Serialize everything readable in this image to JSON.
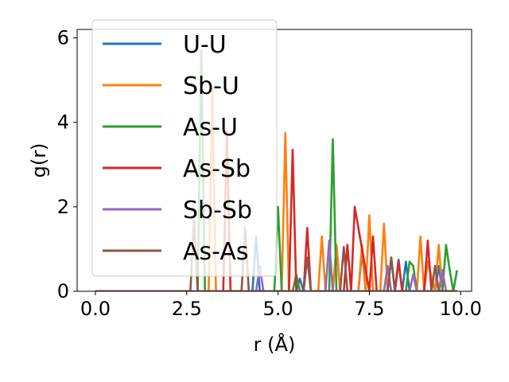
{
  "chart_data": {
    "type": "line",
    "title": "",
    "xlabel": "r (Å)",
    "ylabel": "g(r)",
    "xlim": [
      -0.5,
      10.3
    ],
    "ylim": [
      0,
      6.2
    ],
    "xticks": [
      0.0,
      2.5,
      5.0,
      7.5,
      10.0
    ],
    "xtick_labels": [
      "0.0",
      "2.5",
      "5.0",
      "7.5",
      "10.0"
    ],
    "yticks": [
      0,
      2,
      4,
      6
    ],
    "ytick_labels": [
      "0",
      "2",
      "4",
      "6"
    ],
    "grid": false,
    "legend_position": "upper left",
    "series": [
      {
        "name": "U-U",
        "color": "#1f77b4",
        "x": [
          0.0,
          4.3,
          4.4,
          4.5,
          4.6,
          4.7,
          5.5,
          5.6,
          5.7,
          6.5,
          6.6,
          6.7,
          7.2,
          7.3,
          7.4,
          8.2,
          8.3,
          8.4,
          8.5,
          8.6,
          8.7,
          9.3,
          9.4,
          9.5,
          9.9
        ],
        "y": [
          0.0,
          0.0,
          1.3,
          0.0,
          0.0,
          0.0,
          0.0,
          0.3,
          0.0,
          0.0,
          1.1,
          0.0,
          0.0,
          0.95,
          0.0,
          0.0,
          0.75,
          0.0,
          0.7,
          0.0,
          0.0,
          0.0,
          0.6,
          0.0,
          0.0
        ]
      },
      {
        "name": "Sb-U",
        "color": "#ff7f0e",
        "x": [
          0.0,
          3.1,
          3.2,
          3.3,
          5.1,
          5.2,
          5.3,
          6.1,
          6.2,
          6.3,
          6.5,
          6.6,
          6.7,
          7.2,
          7.3,
          7.4,
          7.5,
          7.6,
          7.8,
          7.9,
          8.0,
          8.8,
          8.9,
          9.0,
          9.1,
          9.3,
          9.4,
          9.5,
          9.9
        ],
        "y": [
          0.0,
          0.0,
          4.8,
          0.0,
          0.0,
          3.75,
          0.0,
          0.0,
          1.3,
          0.0,
          0.0,
          1.1,
          0.0,
          0.0,
          1.1,
          0.0,
          1.8,
          0.0,
          0.0,
          1.6,
          0.0,
          0.0,
          1.3,
          0.0,
          0.7,
          0.0,
          1.1,
          0.0,
          0.0
        ]
      },
      {
        "name": "As-U",
        "color": "#2ca02c",
        "x": [
          0.0,
          2.8,
          2.9,
          3.0,
          4.9,
          5.0,
          5.1,
          5.4,
          5.5,
          5.6,
          6.4,
          6.5,
          6.6,
          8.0,
          8.1,
          8.2,
          8.5,
          8.6,
          8.7,
          8.8,
          9.5,
          9.6,
          9.7,
          9.8,
          9.9
        ],
        "y": [
          0.0,
          0.0,
          5.7,
          0.0,
          0.0,
          2.0,
          0.0,
          0.0,
          0.4,
          0.0,
          0.0,
          3.6,
          0.0,
          0.0,
          0.8,
          0.0,
          0.0,
          0.7,
          0.6,
          0.0,
          0.0,
          1.1,
          0.5,
          0.0,
          0.5
        ]
      },
      {
        "name": "As-Sb",
        "color": "#d62728",
        "x": [
          0.0,
          3.5,
          3.6,
          3.7,
          5.3,
          5.4,
          5.5,
          5.7,
          5.8,
          5.9,
          6.8,
          6.9,
          7.0,
          7.1,
          7.5,
          7.6,
          7.7,
          7.8,
          8.2,
          8.3,
          8.4,
          9.0,
          9.1,
          9.2,
          9.9
        ],
        "y": [
          0.0,
          0.0,
          3.8,
          0.0,
          0.0,
          3.35,
          0.0,
          0.0,
          1.5,
          0.0,
          0.0,
          1.1,
          0.0,
          2.0,
          0.0,
          1.3,
          0.0,
          0.0,
          0.0,
          0.7,
          0.0,
          0.0,
          1.2,
          0.0,
          0.0
        ]
      },
      {
        "name": "Sb-Sb",
        "color": "#9467bd",
        "x": [
          0.0,
          4.4,
          4.5,
          4.6,
          6.3,
          6.4,
          6.5,
          7.9,
          8.0,
          8.1,
          8.6,
          8.7,
          8.8,
          9.4,
          9.5,
          9.6,
          9.9
        ],
        "y": [
          0.0,
          0.0,
          0.6,
          0.0,
          0.0,
          1.2,
          0.0,
          0.0,
          0.6,
          0.0,
          0.0,
          0.4,
          0.0,
          0.0,
          0.5,
          0.0,
          0.0
        ]
      },
      {
        "name": "As-As",
        "color": "#8c564b",
        "x": [
          0.0,
          2.6,
          2.7,
          2.8,
          4.0,
          4.1,
          4.2,
          5.7,
          5.8,
          5.9,
          6.7,
          6.8,
          6.9,
          8.0,
          8.1,
          8.2,
          9.2,
          9.3,
          9.4,
          9.9
        ],
        "y": [
          0.0,
          0.0,
          1.7,
          0.0,
          0.0,
          1.5,
          0.0,
          0.0,
          0.8,
          0.0,
          0.0,
          1.05,
          0.0,
          0.0,
          0.8,
          0.0,
          0.0,
          0.6,
          0.0,
          0.0
        ]
      }
    ]
  }
}
